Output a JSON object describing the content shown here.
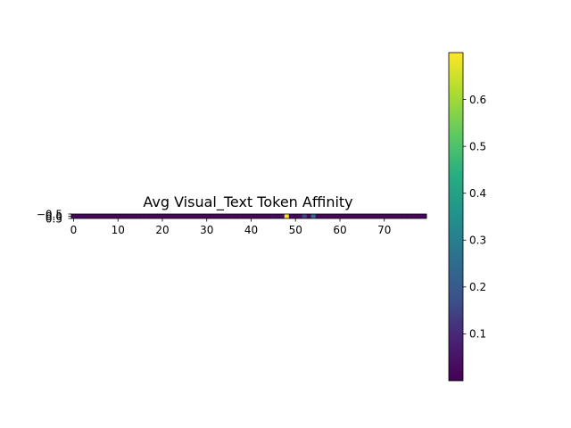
{
  "chart_data": {
    "type": "heatmap",
    "title": "Avg Visual_Text Token Affinity",
    "xlabel": "",
    "ylabel": "",
    "colormap": "viridis",
    "vmin": 0.0,
    "vmax": 0.7,
    "rows": 1,
    "cols": 80,
    "xlim": [
      -0.5,
      79.5
    ],
    "ylim": [
      0.5,
      -0.5
    ],
    "x_ticks": [
      0,
      10,
      20,
      30,
      40,
      50,
      60,
      70
    ],
    "x_tick_labels": [
      "0",
      "10",
      "20",
      "30",
      "40",
      "50",
      "60",
      "70"
    ],
    "y_ticks": [
      -0.5,
      0.0,
      0.5
    ],
    "y_tick_labels": [
      "−0.5",
      "0.0",
      "0.5"
    ],
    "colorbar_ticks": [
      0.1,
      0.2,
      0.3,
      0.4,
      0.5,
      0.6
    ],
    "colorbar_tick_labels": [
      "0.1",
      "0.2",
      "0.3",
      "0.4",
      "0.5",
      "0.6"
    ],
    "values": [
      0.02,
      0.02,
      0.02,
      0.02,
      0.02,
      0.02,
      0.02,
      0.02,
      0.02,
      0.02,
      0.02,
      0.02,
      0.02,
      0.02,
      0.02,
      0.02,
      0.02,
      0.02,
      0.02,
      0.02,
      0.02,
      0.02,
      0.02,
      0.02,
      0.02,
      0.02,
      0.02,
      0.02,
      0.02,
      0.02,
      0.02,
      0.02,
      0.02,
      0.02,
      0.02,
      0.02,
      0.02,
      0.02,
      0.02,
      0.02,
      0.02,
      0.02,
      0.02,
      0.02,
      0.02,
      0.03,
      0.02,
      0.04,
      0.7,
      0.03,
      0.02,
      0.03,
      0.15,
      0.02,
      0.25,
      0.02,
      0.02,
      0.02,
      0.02,
      0.02,
      0.02,
      0.02,
      0.02,
      0.02,
      0.02,
      0.02,
      0.02,
      0.02,
      0.02,
      0.02,
      0.02,
      0.02,
      0.02,
      0.02,
      0.02,
      0.02,
      0.02,
      0.02,
      0.02,
      0.02
    ]
  }
}
